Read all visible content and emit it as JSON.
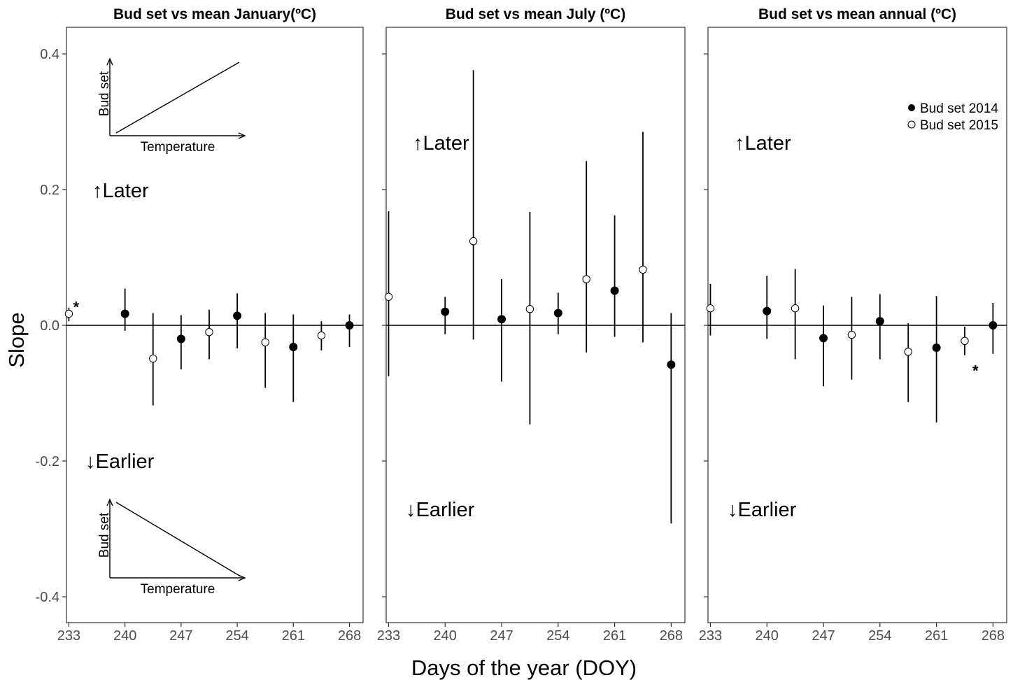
{
  "chart_data": {
    "type": "scatter",
    "xlabel": "Days of the year (DOY)",
    "ylabel": "Slope",
    "xlim": [
      232.7,
      269.7
    ],
    "ylim": [
      -0.44,
      0.44
    ],
    "x_ticks": [
      233,
      240,
      247,
      254,
      261,
      268
    ],
    "y_ticks": [
      0.4,
      0.2,
      0.0,
      -0.2,
      -0.4
    ],
    "y_tick_labels": [
      "0.4",
      "0.2",
      "0.0",
      "-0.2",
      "-0.4"
    ],
    "reference_line_y": 0,
    "grid": false,
    "legend": {
      "placement": "top-right of third panel",
      "entries": [
        {
          "label": "Bud set 2014",
          "marker": "filled-circle"
        },
        {
          "label": "Bud set 2015",
          "marker": "open-circle"
        }
      ]
    },
    "direction_labels": {
      "up_arrow": "↑",
      "up": "Later",
      "down_arrow": "↓",
      "down": "Earlier"
    },
    "insets": {
      "y_label": "Bud set",
      "x_label": "Temperature"
    },
    "significance_marker": "*",
    "panels": [
      {
        "title": "Bud set vs mean January(ºC)",
        "series": [
          {
            "name": "Bud set 2014",
            "marker": "filled",
            "points": [
              {
                "x": 240,
                "y": 0.017,
                "lo": -0.008,
                "hi": 0.054
              },
              {
                "x": 247,
                "y": -0.02,
                "lo": -0.065,
                "hi": 0.015
              },
              {
                "x": 254,
                "y": 0.014,
                "lo": -0.034,
                "hi": 0.047
              },
              {
                "x": 261,
                "y": -0.032,
                "lo": -0.113,
                "hi": 0.016
              },
              {
                "x": 268,
                "y": 0.0,
                "lo": -0.032,
                "hi": 0.016
              }
            ]
          },
          {
            "name": "Bud set 2015",
            "marker": "open",
            "points": [
              {
                "x": 233,
                "y": 0.017,
                "lo": 0.006,
                "hi": 0.026,
                "significant": true
              },
              {
                "x": 243.5,
                "y": -0.049,
                "lo": -0.118,
                "hi": 0.018
              },
              {
                "x": 250.5,
                "y": -0.01,
                "lo": -0.05,
                "hi": 0.023
              },
              {
                "x": 257.5,
                "y": -0.025,
                "lo": -0.092,
                "hi": 0.018
              },
              {
                "x": 264.5,
                "y": -0.015,
                "lo": -0.037,
                "hi": 0.006
              }
            ]
          }
        ]
      },
      {
        "title": "Bud set vs mean July (ºC)",
        "series": [
          {
            "name": "Bud set 2014",
            "marker": "filled",
            "points": [
              {
                "x": 240,
                "y": 0.02,
                "lo": -0.013,
                "hi": 0.042
              },
              {
                "x": 247,
                "y": 0.009,
                "lo": -0.083,
                "hi": 0.068
              },
              {
                "x": 254,
                "y": 0.018,
                "lo": -0.013,
                "hi": 0.048
              },
              {
                "x": 261,
                "y": 0.051,
                "lo": -0.017,
                "hi": 0.162
              },
              {
                "x": 268,
                "y": -0.058,
                "lo": -0.292,
                "hi": 0.018
              }
            ]
          },
          {
            "name": "Bud set 2015",
            "marker": "open",
            "points": [
              {
                "x": 233,
                "y": 0.042,
                "lo": -0.075,
                "hi": 0.168
              },
              {
                "x": 243.5,
                "y": 0.124,
                "lo": -0.021,
                "hi": 0.376
              },
              {
                "x": 250.5,
                "y": 0.024,
                "lo": -0.146,
                "hi": 0.167
              },
              {
                "x": 257.5,
                "y": 0.068,
                "lo": -0.04,
                "hi": 0.242
              },
              {
                "x": 264.5,
                "y": 0.082,
                "lo": -0.025,
                "hi": 0.285
              }
            ]
          }
        ]
      },
      {
        "title": "Bud set vs mean annual (ºC)",
        "series": [
          {
            "name": "Bud set 2014",
            "marker": "filled",
            "points": [
              {
                "x": 240,
                "y": 0.021,
                "lo": -0.02,
                "hi": 0.073
              },
              {
                "x": 247,
                "y": -0.019,
                "lo": -0.09,
                "hi": 0.029
              },
              {
                "x": 254,
                "y": 0.006,
                "lo": -0.05,
                "hi": 0.046
              },
              {
                "x": 261,
                "y": -0.033,
                "lo": -0.143,
                "hi": 0.043
              },
              {
                "x": 268,
                "y": 0.0,
                "lo": -0.042,
                "hi": 0.033
              }
            ]
          },
          {
            "name": "Bud set 2015",
            "marker": "open",
            "points": [
              {
                "x": 233,
                "y": 0.025,
                "lo": -0.015,
                "hi": 0.061
              },
              {
                "x": 243.5,
                "y": 0.025,
                "lo": -0.05,
                "hi": 0.083
              },
              {
                "x": 250.5,
                "y": -0.014,
                "lo": -0.08,
                "hi": 0.042
              },
              {
                "x": 257.5,
                "y": -0.039,
                "lo": -0.113,
                "hi": 0.003
              },
              {
                "x": 264.5,
                "y": -0.023,
                "lo": -0.044,
                "hi": -0.002,
                "significant": true
              }
            ]
          }
        ]
      }
    ]
  }
}
